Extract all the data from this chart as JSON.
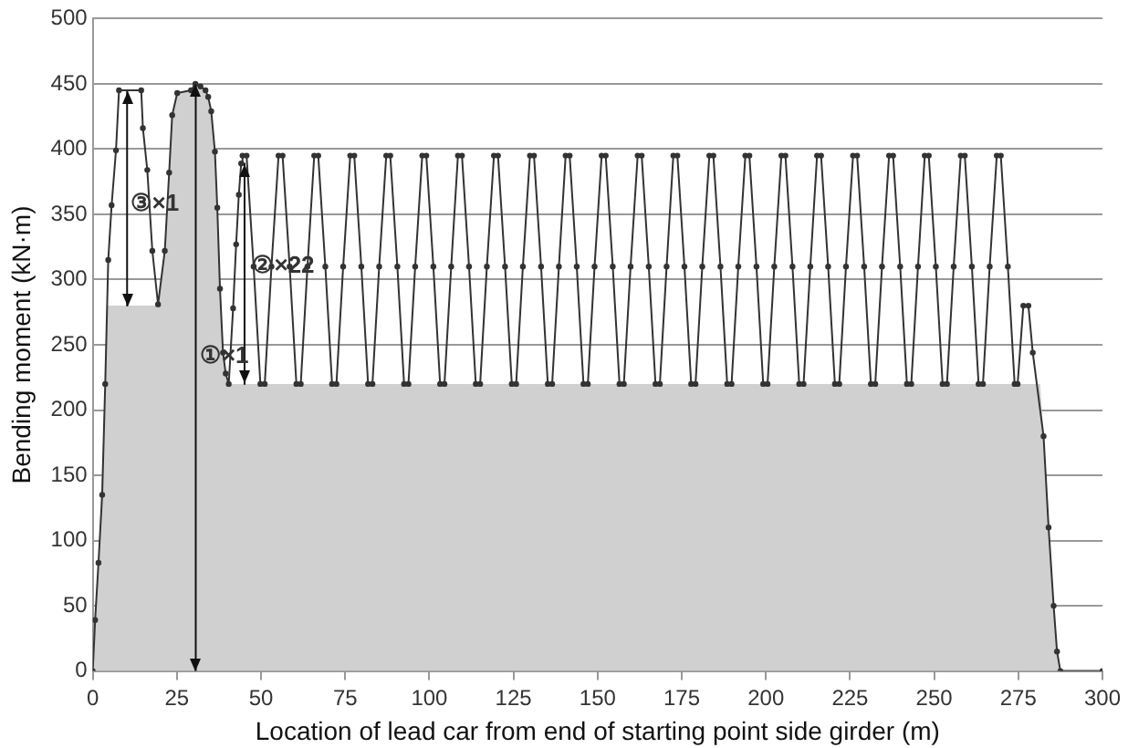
{
  "chart_data": {
    "type": "line",
    "xlabel": "Location of lead car from end of starting point side girder (m)",
    "ylabel": "Bending moment (kN·m)",
    "xlim": [
      0,
      300
    ],
    "xticks": [
      0,
      25,
      50,
      75,
      100,
      125,
      150,
      175,
      200,
      225,
      250,
      275,
      300
    ],
    "ylim": [
      0,
      500
    ],
    "yticks": [
      0,
      50,
      100,
      150,
      200,
      250,
      300,
      350,
      400,
      450,
      500
    ],
    "grid": "y",
    "legend": false,
    "annotations": [
      "③×1",
      "②×22",
      "①×1"
    ],
    "series": [
      {
        "type": "area",
        "color": "#d0d0d0",
        "marker": "none",
        "x": [
          0,
          1.7,
          3.7,
          4.2,
          19.4,
          21.4,
          22.7,
          23.6,
          25.1,
          29.2,
          30.5,
          32,
          33.5,
          34.3,
          35.2,
          36.3,
          37,
          37.8,
          38.7,
          39.5,
          40.4,
          281.5,
          282.5,
          284,
          285.5,
          286.5,
          287.5
        ],
        "values": [
          0,
          83,
          220,
          280,
          280,
          322,
          382,
          426,
          443,
          445,
          450,
          448,
          445,
          440,
          429,
          398,
          355,
          293,
          244,
          228,
          220,
          220,
          180,
          110,
          50,
          15,
          0
        ]
      },
      {
        "color": "#333333",
        "marker": "circle",
        "x": [
          0,
          0.7,
          1.7,
          2.8,
          3.7,
          4.6,
          5.6,
          6.9,
          7.8,
          14.4,
          14.9,
          16.2,
          17.7,
          19.4,
          21.4,
          22.7,
          23.6,
          25.1,
          29.2,
          30.5,
          32,
          33.5,
          34.3,
          35.2,
          36.3,
          37,
          37.8,
          38.7,
          39.5,
          40.4,
          41.7,
          42.6,
          43.4,
          44.1,
          44.5,
          45.7,
          47.8,
          49.8,
          51.1,
          53.1,
          55.2,
          56.4,
          58.5,
          60.5,
          61.8,
          63.8,
          65.8,
          67,
          69.1,
          71.1,
          72.4,
          74.4,
          76.5,
          77.7,
          79.8,
          81.8,
          83.1,
          85.1,
          87.2,
          88.4,
          90.5,
          92.5,
          93.8,
          95.8,
          97.9,
          99.1,
          101.2,
          103.2,
          104.5,
          106.5,
          108.5,
          109.7,
          111.8,
          113.8,
          115.1,
          117.1,
          119.2,
          120.4,
          122.5,
          124.5,
          125.8,
          127.8,
          129.9,
          131.1,
          133.2,
          135.2,
          136.5,
          138.5,
          140.5,
          141.7,
          143.8,
          145.8,
          147.1,
          149.1,
          151.2,
          152.4,
          154.5,
          156.5,
          157.8,
          159.8,
          161.9,
          163.1,
          165.2,
          167.2,
          168.5,
          170.5,
          172.5,
          173.7,
          175.8,
          177.8,
          179.1,
          181.1,
          183.2,
          184.4,
          186.5,
          188.5,
          189.8,
          191.8,
          193.9,
          195.1,
          197.2,
          199.2,
          200.5,
          202.5,
          204.6,
          205.8,
          207.9,
          209.9,
          211.2,
          213.2,
          215.2,
          216.4,
          218.5,
          220.5,
          221.8,
          223.8,
          225.9,
          227.1,
          229.2,
          231.2,
          232.5,
          234.5,
          236.6,
          237.8,
          239.9,
          241.9,
          243.2,
          245.2,
          247.2,
          248.4,
          250.5,
          252.5,
          253.8,
          255.8,
          257.9,
          259.1,
          261.2,
          263.2,
          264.5,
          266.5,
          268.6,
          269.8,
          271.9,
          273.9,
          274.8,
          276.5,
          278,
          279.3,
          282.5,
          284,
          285.5,
          286.5,
          287.5,
          300
        ],
        "values": [
          0,
          39,
          83,
          135,
          220,
          315,
          357,
          399,
          445,
          445,
          416,
          384,
          322,
          281,
          322,
          382,
          426,
          443,
          445,
          450,
          448,
          445,
          440,
          429,
          398,
          355,
          293,
          244,
          228,
          220,
          278,
          327,
          365,
          389,
          395,
          395,
          310,
          220,
          220,
          310,
          395,
          395,
          310,
          220,
          220,
          310,
          395,
          395,
          310,
          220,
          220,
          310,
          395,
          395,
          310,
          220,
          220,
          310,
          395,
          395,
          310,
          220,
          220,
          310,
          395,
          395,
          310,
          220,
          220,
          310,
          395,
          395,
          310,
          220,
          220,
          310,
          395,
          395,
          310,
          220,
          220,
          310,
          395,
          395,
          310,
          220,
          220,
          310,
          395,
          395,
          310,
          220,
          220,
          310,
          395,
          395,
          310,
          220,
          220,
          310,
          395,
          395,
          310,
          220,
          220,
          310,
          395,
          395,
          310,
          220,
          220,
          310,
          395,
          395,
          310,
          220,
          220,
          310,
          395,
          395,
          310,
          220,
          220,
          310,
          395,
          395,
          310,
          220,
          220,
          310,
          395,
          395,
          310,
          220,
          220,
          310,
          395,
          395,
          310,
          220,
          220,
          310,
          395,
          395,
          310,
          220,
          220,
          310,
          395,
          395,
          310,
          220,
          220,
          310,
          395,
          395,
          310,
          220,
          220,
          310,
          395,
          395,
          310,
          220,
          220,
          280,
          280,
          244,
          180,
          110,
          50,
          15,
          0,
          0
        ]
      },
      {
        "type": "line",
        "color": "#111111",
        "marker": "none",
        "x": [
          10.2,
          10.2
        ],
        "values": [
          445,
          280
        ]
      },
      {
        "type": "line",
        "color": "#111111",
        "marker": "none",
        "x": [
          30.6,
          30.6
        ],
        "values": [
          450,
          0
        ]
      },
      {
        "type": "line",
        "color": "#111111",
        "marker": "none",
        "x": [
          45.1,
          45.1
        ],
        "values": [
          389,
          220
        ]
      }
    ]
  }
}
